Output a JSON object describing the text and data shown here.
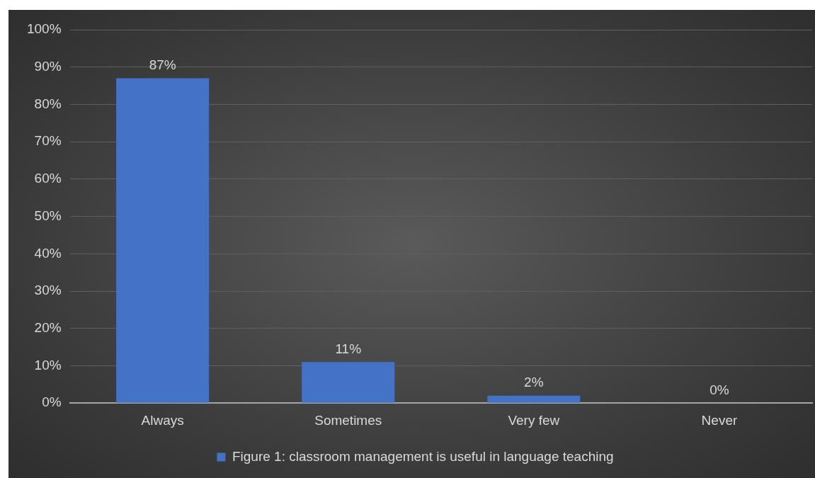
{
  "chart_data": {
    "type": "bar",
    "categories": [
      "Always",
      "Sometimes",
      "Very few",
      "Never"
    ],
    "series": [
      {
        "name": "Figure 1: classroom management is useful in language teaching",
        "color": "#4472c4",
        "values": [
          87,
          11,
          2,
          0
        ]
      }
    ],
    "ylim": [
      0,
      100
    ],
    "yticks": [
      {
        "value": 0,
        "label": "0%"
      },
      {
        "value": 10,
        "label": "10%"
      },
      {
        "value": 20,
        "label": "20%"
      },
      {
        "value": 30,
        "label": "30%"
      },
      {
        "value": 40,
        "label": "40%"
      },
      {
        "value": 50,
        "label": "50%"
      },
      {
        "value": 60,
        "label": "60%"
      },
      {
        "value": 70,
        "label": "70%"
      },
      {
        "value": 80,
        "label": "80%"
      },
      {
        "value": 90,
        "label": "90%"
      },
      {
        "value": 100,
        "label": "100%"
      }
    ],
    "value_labels": [
      "87%",
      "11%",
      "2%",
      "0%"
    ],
    "grid": "y",
    "legend": "bottom"
  }
}
